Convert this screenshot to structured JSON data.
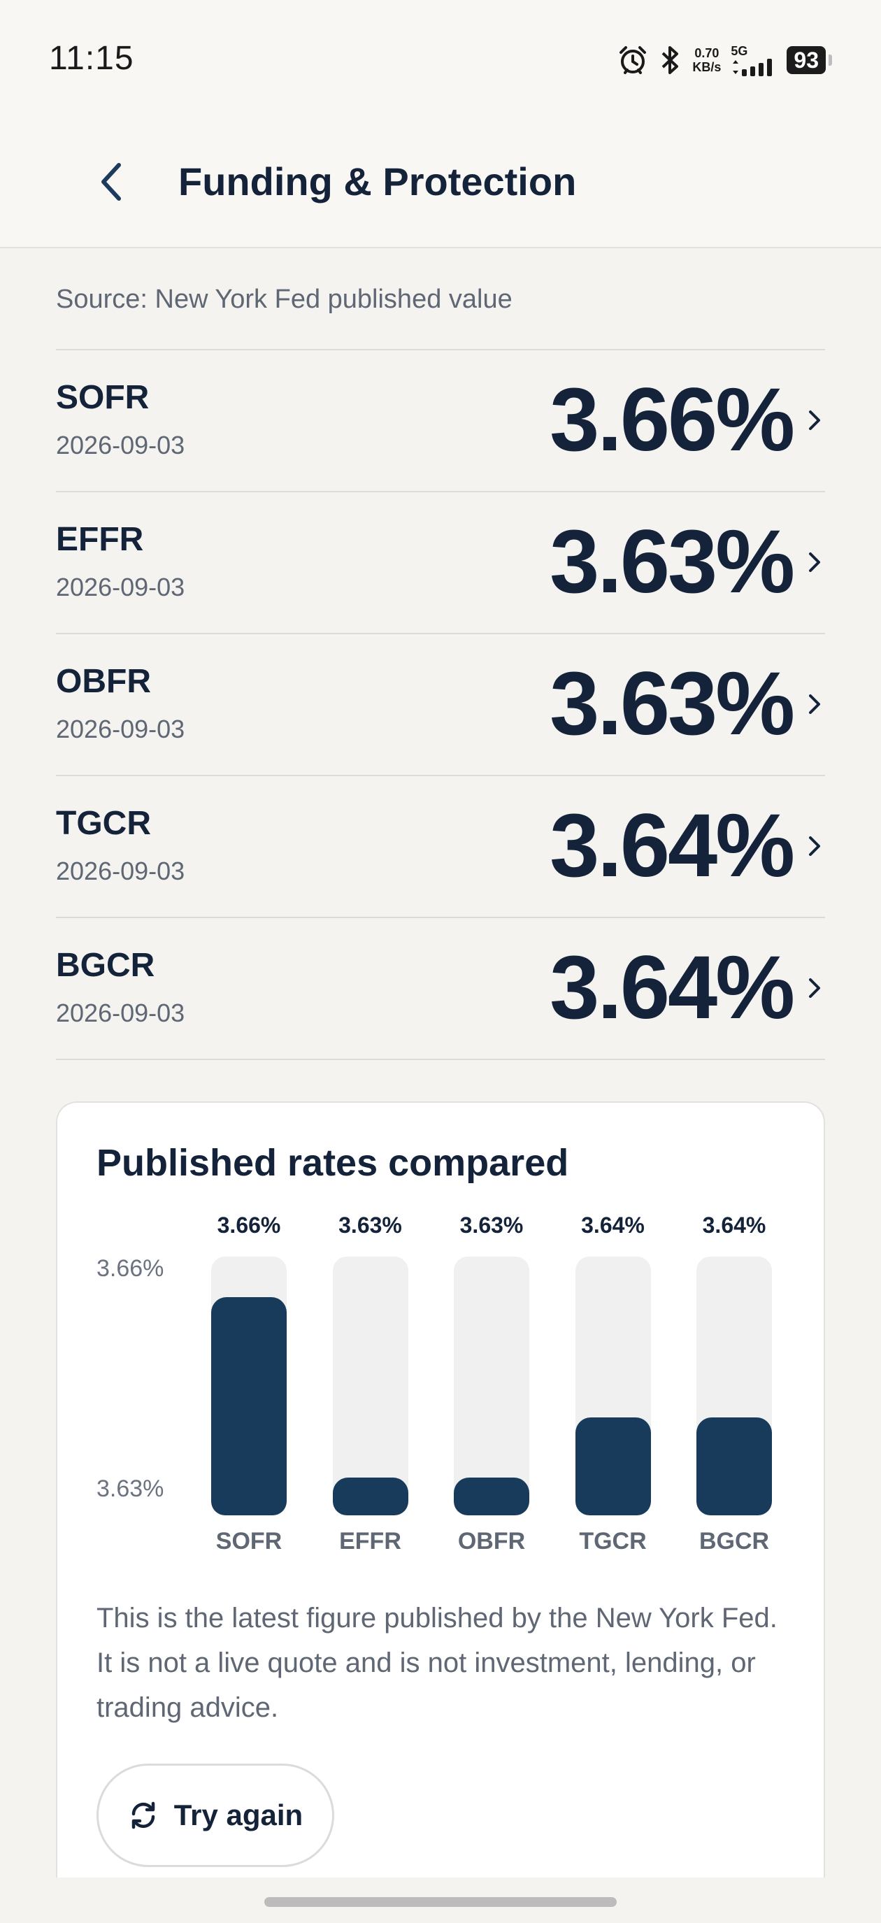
{
  "status_bar": {
    "time": "11:15",
    "net_speed_value": "0.70",
    "net_speed_unit": "KB/s",
    "network_type": "5G",
    "battery": "93"
  },
  "header": {
    "title": "Funding & Protection",
    "back_icon": "chevron-left-icon"
  },
  "source_note": "Source: New York Fed published value",
  "rates": [
    {
      "name": "SOFR",
      "date": "2026-09-03",
      "value": "3.66%"
    },
    {
      "name": "EFFR",
      "date": "2026-09-03",
      "value": "3.63%"
    },
    {
      "name": "OBFR",
      "date": "2026-09-03",
      "value": "3.63%"
    },
    {
      "name": "TGCR",
      "date": "2026-09-03",
      "value": "3.64%"
    },
    {
      "name": "BGCR",
      "date": "2026-09-03",
      "value": "3.64%"
    }
  ],
  "card": {
    "title": "Published rates compared",
    "disclaimer": "This is the latest figure published by the New York Fed. It is not a live quote and is not investment, lending, or trading advice.",
    "retry_label": "Try again",
    "retry_icon": "refresh-icon"
  },
  "chart_data": {
    "type": "bar",
    "categories": [
      "SOFR",
      "EFFR",
      "OBFR",
      "TGCR",
      "BGCR"
    ],
    "values": [
      3.66,
      3.63,
      3.63,
      3.64,
      3.64
    ],
    "value_labels": [
      "3.66%",
      "3.63%",
      "3.63%",
      "3.64%",
      "3.64%"
    ],
    "y_tick_labels": [
      "3.66%",
      "3.63%"
    ],
    "ylim": [
      3.6237,
      3.6667
    ],
    "title": "",
    "xlabel": "",
    "ylabel": "",
    "colors": {
      "bar": "#183b5c",
      "track": "#eff0ef"
    }
  },
  "colors": {
    "text_primary": "#14233a",
    "text_secondary": "#5e6773",
    "background": "#f4f3f0"
  }
}
